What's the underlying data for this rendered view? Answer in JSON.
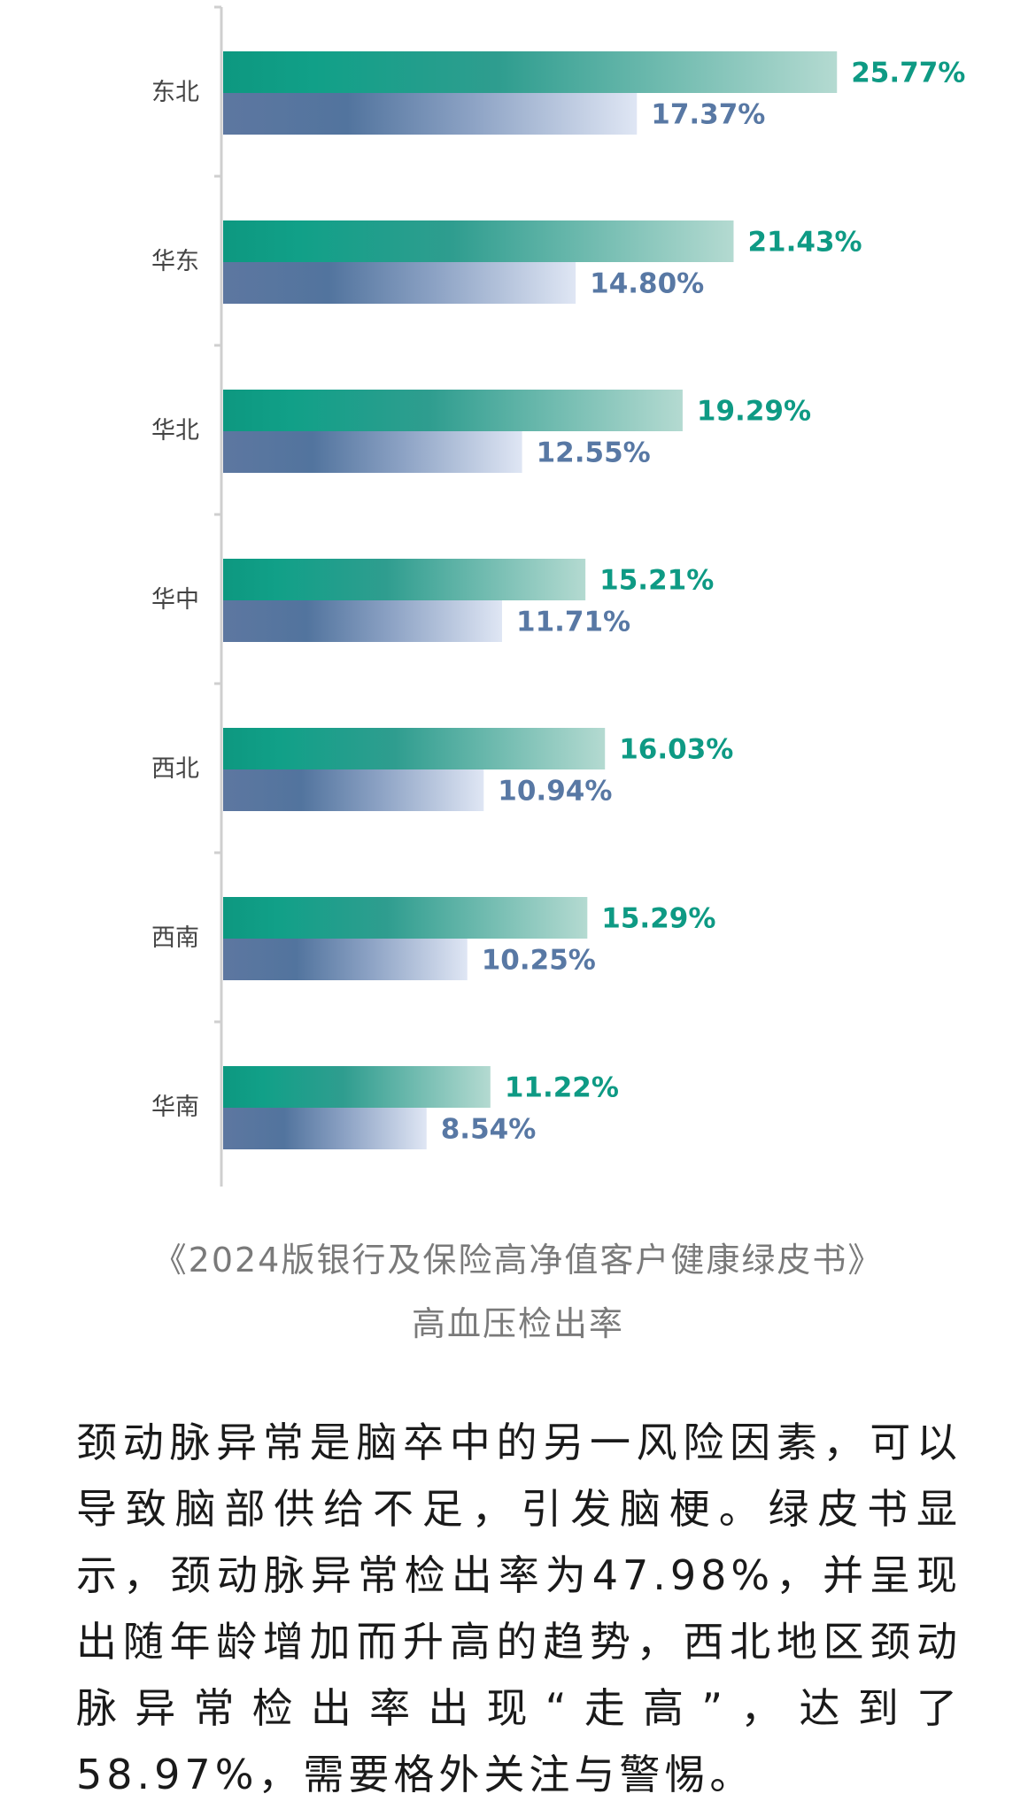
{
  "chart_data": {
    "type": "bar",
    "orientation": "horizontal",
    "categories": [
      "东北",
      "华东",
      "华北",
      "华中",
      "西北",
      "西南",
      "华南"
    ],
    "series": [
      {
        "values": [
          25.77,
          21.43,
          19.29,
          15.21,
          16.03,
          15.29,
          11.22
        ],
        "labels": [
          "25.77%",
          "21.43%",
          "19.29%",
          "15.21%",
          "16.03%",
          "15.29%",
          "11.22%"
        ],
        "color": "#0e9a84"
      },
      {
        "values": [
          17.37,
          14.8,
          12.55,
          11.71,
          10.94,
          10.25,
          8.54
        ],
        "labels": [
          "17.37%",
          "14.80%",
          "12.55%",
          "11.71%",
          "10.94%",
          "10.25%",
          "8.54%"
        ],
        "color": "#5878a4"
      }
    ],
    "xlim": [
      0,
      34.2
    ],
    "grid": false,
    "legend": "none"
  },
  "caption": {
    "line1": "《2024版银行及保险高净值客户健康绿皮书》",
    "line2": "高血压检出率"
  },
  "body_text": "颈动脉异常是脑卒中的另一风险因素，可以导致脑部供给不足，引发脑梗。绿皮书显示，颈动脉异常检出率为47.98%，并呈现出随年龄增加而升高的趋势，西北地区颈动脉异常检出率出现“走高”，达到了58.97%，需要格外关注与警惕。"
}
